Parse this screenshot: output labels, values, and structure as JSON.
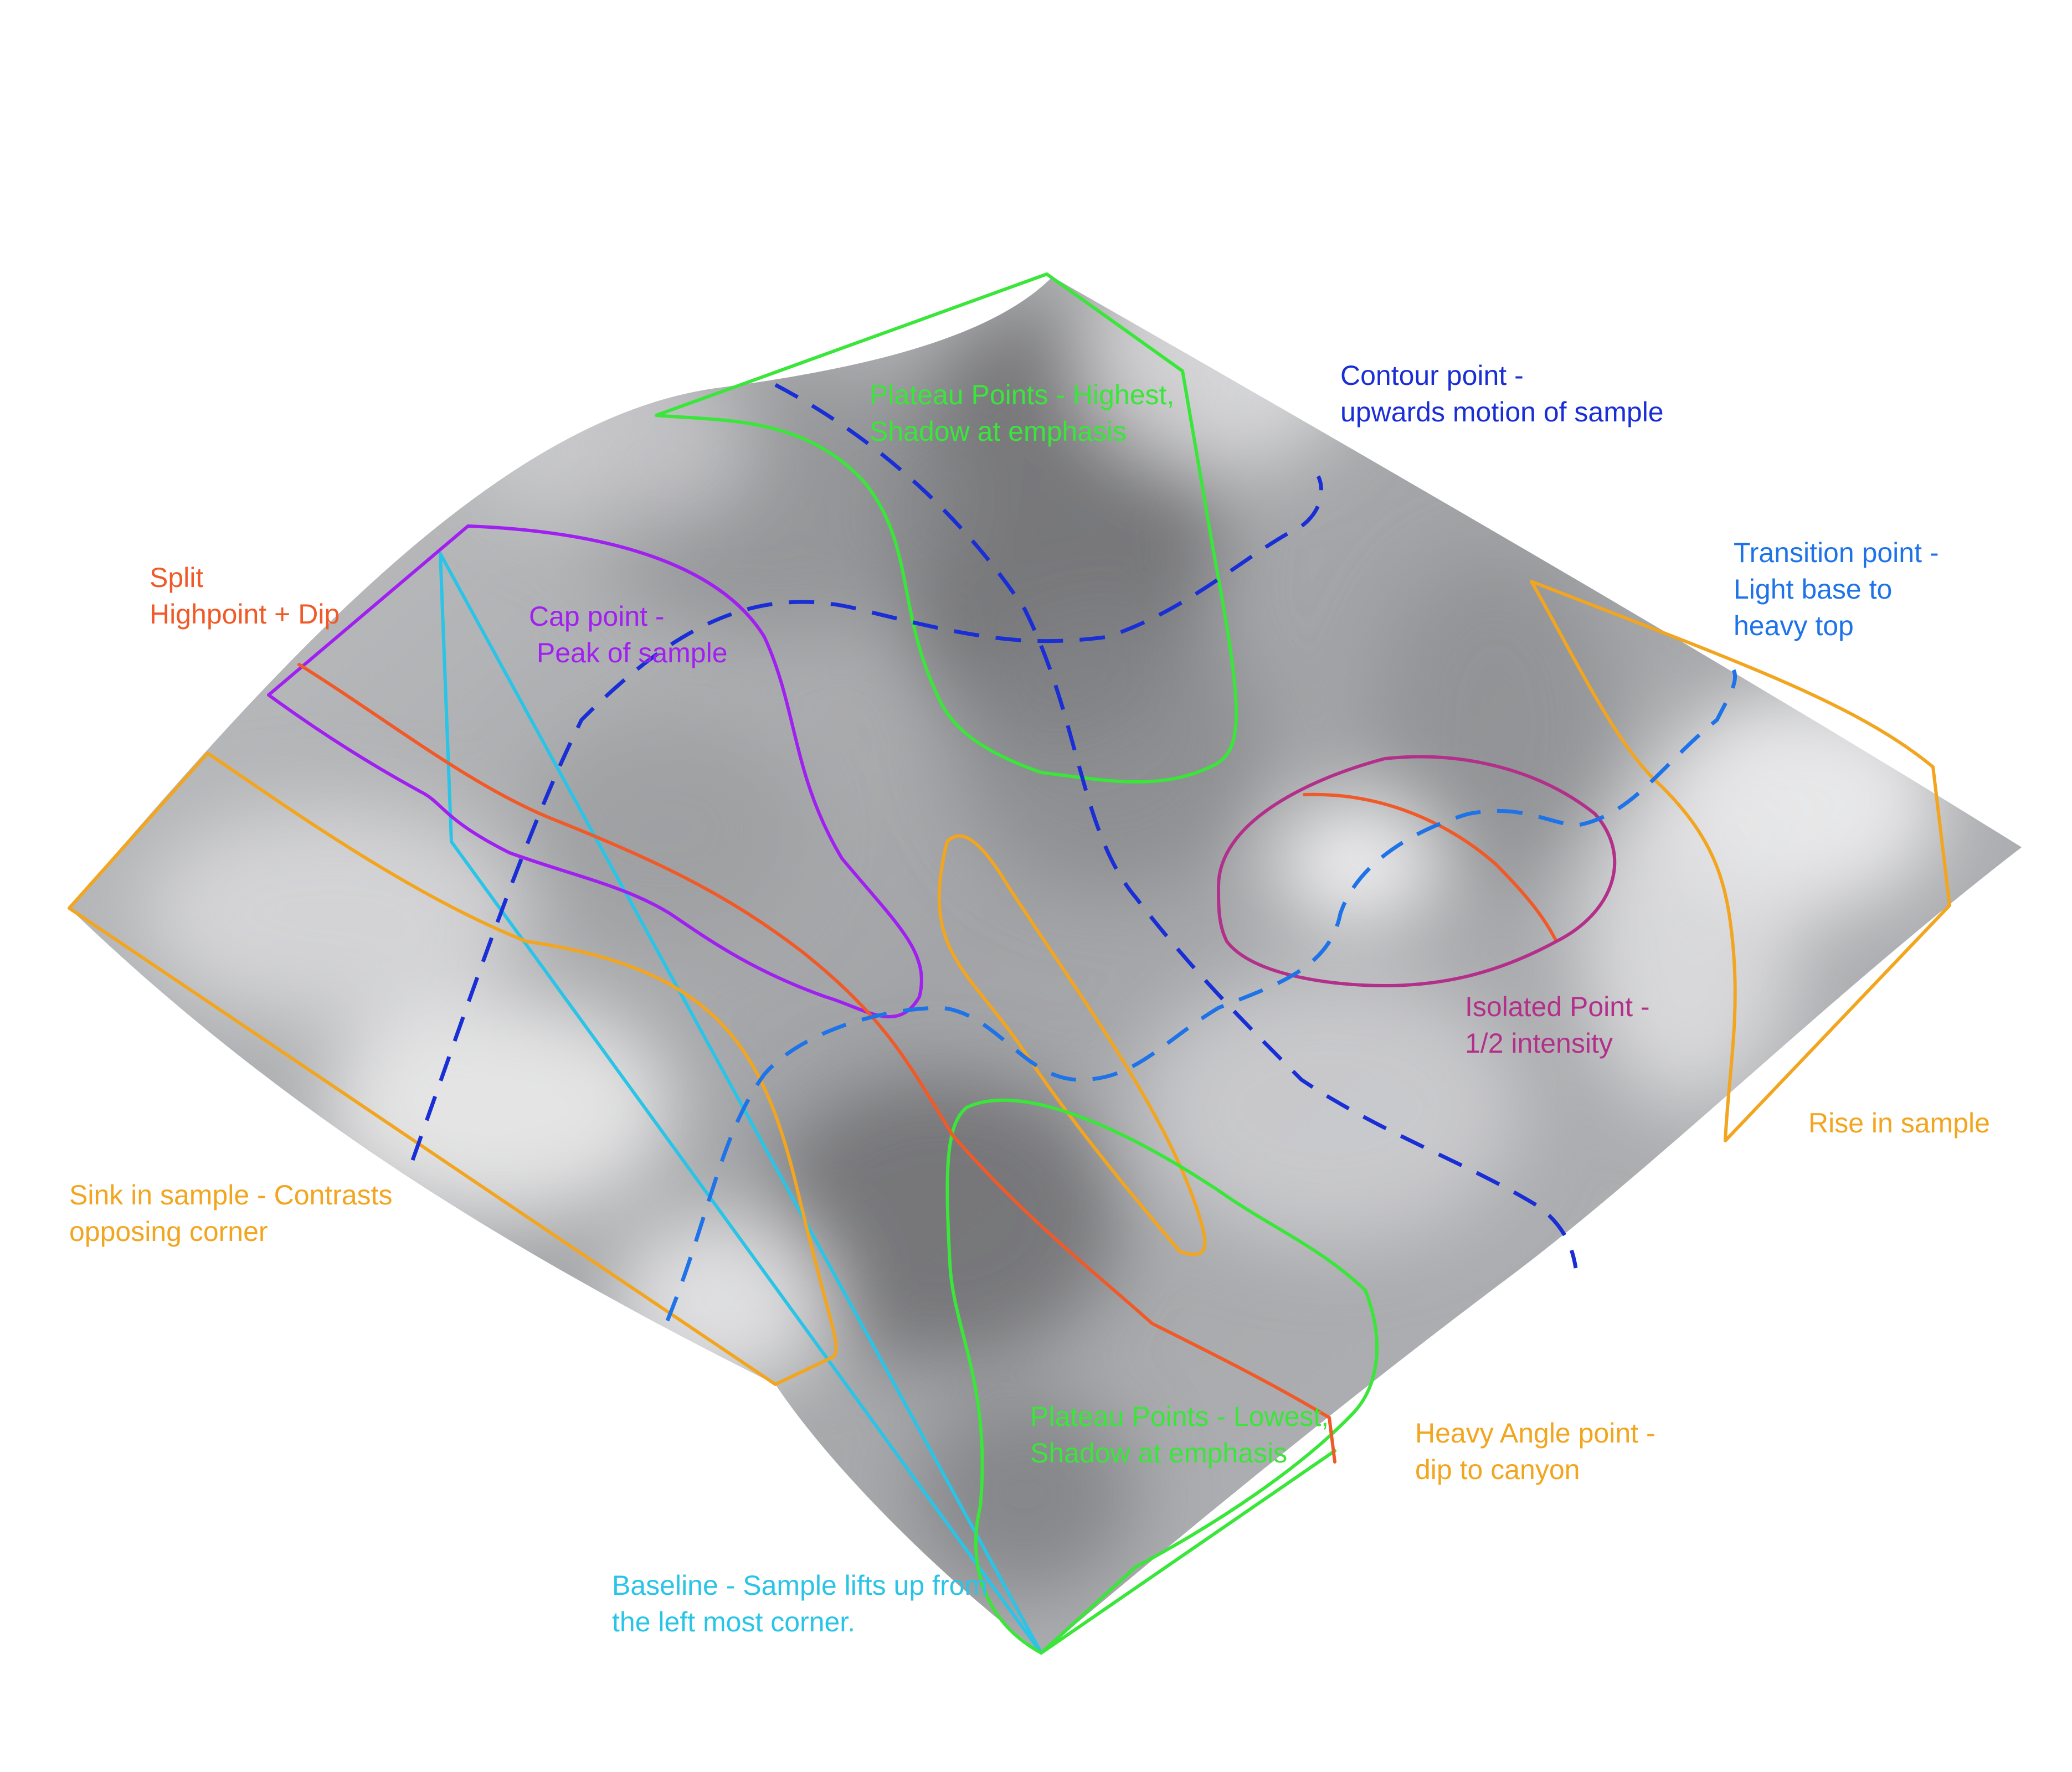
{
  "colors": {
    "red_orange": "#f05a28",
    "purple": "#a020f0",
    "green": "#39e639",
    "dark_blue": "#1a2ed6",
    "mid_blue": "#1e73e8",
    "orange": "#f2a51f",
    "magenta": "#b3308a",
    "cyan": "#29c4e6"
  },
  "labels": {
    "split": [
      "Split",
      "Highpoint + Dip"
    ],
    "cap": [
      "Cap point -",
      " Peak of sample"
    ],
    "plateau_high": [
      "Plateau Points - Highest,",
      "Shadow at emphasis"
    ],
    "contour": [
      "Contour point -",
      "upwards motion of sample"
    ],
    "transition": [
      "Transition point -",
      "Light base to",
      "heavy top"
    ],
    "isolated": [
      "Isolated Point -",
      "1/2 intensity"
    ],
    "rise": [
      "Rise in sample"
    ],
    "sink": [
      "Sink in sample - Contrasts",
      "opposing corner"
    ],
    "plateau_low": [
      "Plateau Points - Lowest,",
      "Shadow at emphasis"
    ],
    "heavy_angle": [
      "Heavy Angle point -",
      "dip to canyon"
    ],
    "baseline": [
      "Baseline - Sample lifts up from",
      "the left most corner."
    ]
  }
}
